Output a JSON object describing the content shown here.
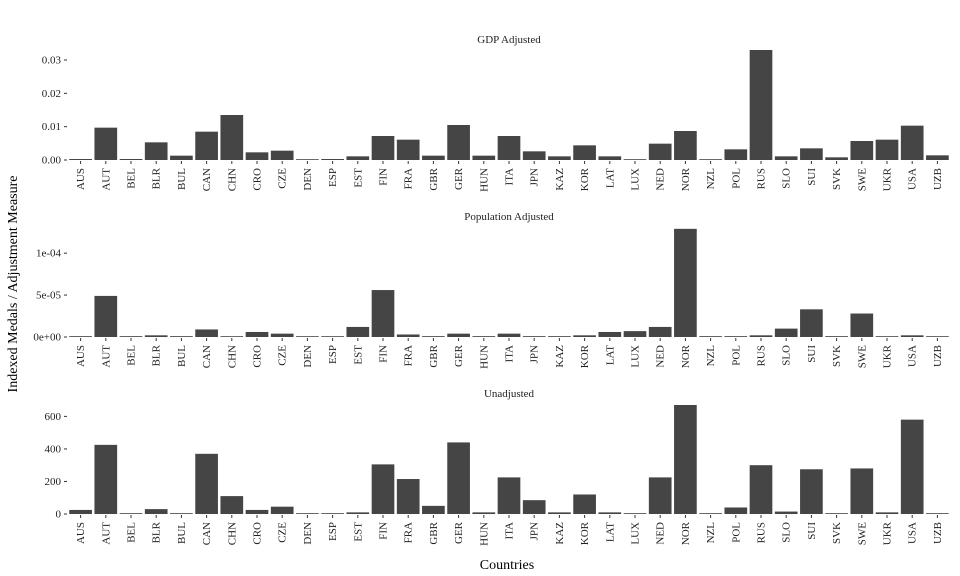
{
  "figure": {
    "ylabel": "Indexed Medals / Adjustment Measure",
    "xlabel": "Countries"
  },
  "colors": {
    "bar": "#454545",
    "tick": "#333333",
    "text": "#222222"
  },
  "chart_data": [
    {
      "type": "bar",
      "title": "GDP Adjusted",
      "categories": [
        "AUS",
        "AUT",
        "BEL",
        "BLR",
        "BUL",
        "CAN",
        "CHN",
        "CRO",
        "CZE",
        "DEN",
        "ESP",
        "EST",
        "FIN",
        "FRA",
        "GBR",
        "GER",
        "HUN",
        "ITA",
        "JPN",
        "KAZ",
        "KOR",
        "LAT",
        "LUX",
        "NED",
        "NOR",
        "NZL",
        "POL",
        "RUS",
        "SLO",
        "SUI",
        "SVK",
        "SWE",
        "UKR",
        "USA",
        "UZB"
      ],
      "values": [
        0.0003,
        0.0097,
        0.0003,
        0.0053,
        0.0013,
        0.0085,
        0.0135,
        0.0023,
        0.0028,
        0.0,
        0.0003,
        0.0011,
        0.0072,
        0.0061,
        0.0013,
        0.0105,
        0.0013,
        0.0072,
        0.0026,
        0.0011,
        0.0044,
        0.0011,
        0.0,
        0.0049,
        0.0087,
        0.0002,
        0.0032,
        0.033,
        0.0011,
        0.0035,
        0.0008,
        0.0057,
        0.0061,
        0.0103,
        0.0014
      ],
      "ylim": [
        0,
        0.033
      ],
      "yticks": [
        0,
        0.01,
        0.02,
        0.03
      ],
      "ytick_labels": [
        "0.00",
        "0.01",
        "0.02",
        "0.03"
      ],
      "grid": false
    },
    {
      "type": "bar",
      "title": "Population Adjusted",
      "categories": [
        "AUS",
        "AUT",
        "BEL",
        "BLR",
        "BUL",
        "CAN",
        "CHN",
        "CRO",
        "CZE",
        "DEN",
        "ESP",
        "EST",
        "FIN",
        "FRA",
        "GBR",
        "GER",
        "HUN",
        "ITA",
        "JPN",
        "KAZ",
        "KOR",
        "LAT",
        "LUX",
        "NED",
        "NOR",
        "NZL",
        "POL",
        "RUS",
        "SLO",
        "SUI",
        "SVK",
        "SWE",
        "UKR",
        "USA",
        "UZB"
      ],
      "values": [
        1e-06,
        4.9e-05,
        1e-06,
        2e-06,
        1e-06,
        9e-06,
        0.0,
        6e-06,
        4e-06,
        0.0,
        0.0,
        1.2e-05,
        5.6e-05,
        3e-06,
        1e-06,
        4e-06,
        1e-06,
        4e-06,
        1e-06,
        1e-06,
        2e-06,
        6e-06,
        7e-06,
        1.2e-05,
        0.000129,
        1e-06,
        1e-06,
        2e-06,
        1e-05,
        3.3e-05,
        1e-06,
        2.8e-05,
        0.0,
        2e-06,
        0.0
      ],
      "ylim": [
        0,
        0.00013
      ],
      "yticks": [
        0,
        5e-05,
        0.0001
      ],
      "ytick_labels": [
        "0e+00",
        "5e-05",
        "1e-04"
      ],
      "grid": false
    },
    {
      "type": "bar",
      "title": "Unadjusted",
      "categories": [
        "AUS",
        "AUT",
        "BEL",
        "BLR",
        "BUL",
        "CAN",
        "CHN",
        "CRO",
        "CZE",
        "DEN",
        "ESP",
        "EST",
        "FIN",
        "FRA",
        "GBR",
        "GER",
        "HUN",
        "ITA",
        "JPN",
        "KAZ",
        "KOR",
        "LAT",
        "LUX",
        "NED",
        "NOR",
        "NZL",
        "POL",
        "RUS",
        "SLO",
        "SUI",
        "SVK",
        "SWE",
        "UKR",
        "USA",
        "UZB"
      ],
      "values": [
        25,
        425,
        5,
        30,
        5,
        370,
        110,
        25,
        45,
        0,
        5,
        10,
        305,
        215,
        50,
        440,
        10,
        225,
        85,
        10,
        120,
        10,
        5,
        225,
        670,
        5,
        40,
        300,
        15,
        275,
        5,
        280,
        10,
        580,
        5
      ],
      "ylim": [
        0,
        670
      ],
      "yticks": [
        0,
        200,
        400,
        600
      ],
      "ytick_labels": [
        "0",
        "200",
        "400",
        "600"
      ],
      "grid": false
    }
  ]
}
